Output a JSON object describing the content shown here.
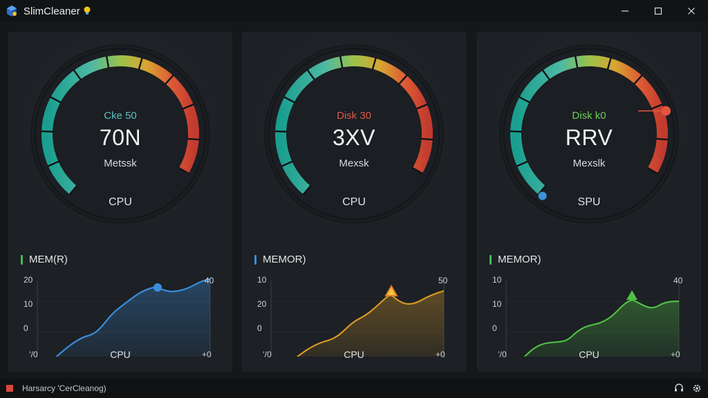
{
  "window": {
    "title": "SlimCleaner",
    "icons": {
      "app": "app-cube-icon",
      "bulb": "lightbulb-icon",
      "minimize": "minimize-icon",
      "maximize": "maximize-icon",
      "close": "close-icon"
    }
  },
  "panels": [
    {
      "gauge": {
        "sub": "Cke 50",
        "sub_color": "#58c1bd",
        "value": "70N",
        "unit": "Metssk",
        "label": "CPU"
      },
      "memory": {
        "title": "MEM(R)",
        "bar_colors": [
          "#3dbb5b"
        ],
        "accent": "#3a8ddb",
        "y_labels": [
          "20",
          "10",
          "0"
        ],
        "right_label": "40",
        "x_left": "ʻ/0",
        "x_right": "+0",
        "xlabel": "CPU"
      }
    },
    {
      "gauge": {
        "sub": "Disk 30",
        "sub_color": "#e05a4a",
        "value": "3XV",
        "unit": "Mexsk",
        "label": "CPU"
      },
      "memory": {
        "title": "MEMOR)",
        "bar_colors": [
          "#3a8ddb"
        ],
        "accent": "#d89a24",
        "y_labels": [
          "10",
          "20",
          "0"
        ],
        "right_label": "50",
        "x_left": "ʻ/0",
        "x_right": "+0",
        "xlabel": "CPU"
      }
    },
    {
      "gauge": {
        "sub": "Disk k0",
        "sub_color": "#6dcd55",
        "value": "RRV",
        "unit": "Mexslk",
        "label": "SPU"
      },
      "memory": {
        "title": "MEMOR)",
        "bar_colors": [
          "#3dbb5b"
        ],
        "accent": "#4fbf45",
        "y_labels": [
          "10",
          "10",
          "0"
        ],
        "right_label": "40",
        "x_left": "ʻ/0",
        "x_right": "+0",
        "xlabel": "CPU"
      }
    }
  ],
  "statusbar": {
    "text": "Harsarcy 'CerCleanog)",
    "icons": {
      "left": "status-square-icon",
      "right1": "headset-icon",
      "right2": "settings-gear-icon"
    }
  }
}
